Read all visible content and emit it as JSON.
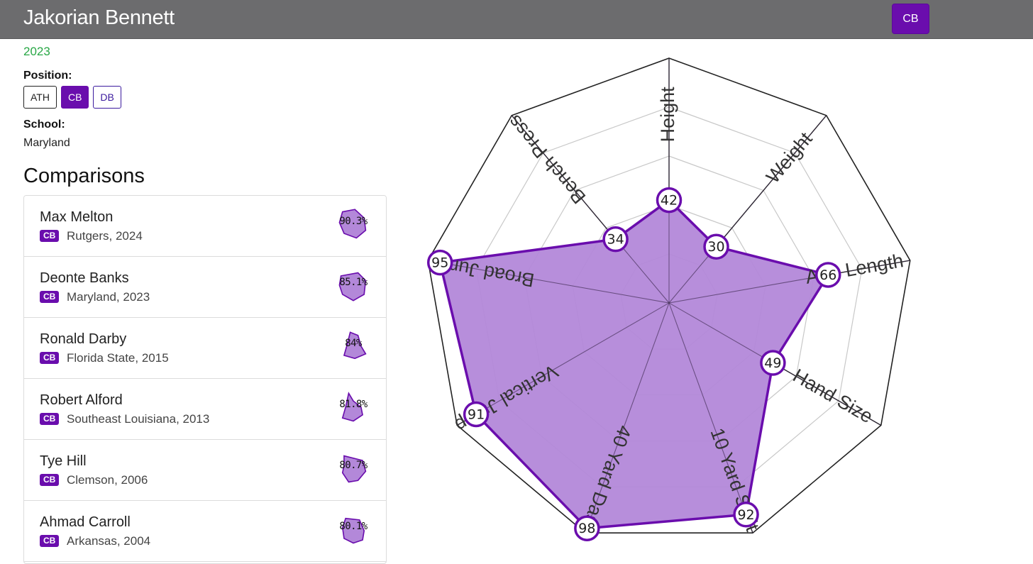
{
  "header": {
    "player_name": "Jakorian Bennett",
    "position_badge": "CB"
  },
  "profile": {
    "year": "2023",
    "position_label": "Position:",
    "positions": [
      {
        "label": "ATH",
        "state": "default"
      },
      {
        "label": "CB",
        "state": "active"
      },
      {
        "label": "DB",
        "state": "outline"
      }
    ],
    "school_label": "School:",
    "school": "Maryland"
  },
  "comparisons": {
    "title": "Comparisons",
    "items": [
      {
        "name": "Max Melton",
        "position": "CB",
        "meta": "Rutgers, 2024",
        "pct": "90.3%"
      },
      {
        "name": "Deonte Banks",
        "position": "CB",
        "meta": "Maryland, 2023",
        "pct": "85.1%"
      },
      {
        "name": "Ronald Darby",
        "position": "CB",
        "meta": "Florida State, 2015",
        "pct": "84%"
      },
      {
        "name": "Robert Alford",
        "position": "CB",
        "meta": "Southeast Louisiana, 2013",
        "pct": "81.8%"
      },
      {
        "name": "Tye Hill",
        "position": "CB",
        "meta": "Clemson, 2006",
        "pct": "80.7%"
      },
      {
        "name": "Ahmad Carroll",
        "position": "CB",
        "meta": "Arkansas, 2004",
        "pct": "80.1%"
      }
    ]
  },
  "radar": {
    "axes": [
      {
        "label": "Height",
        "value": 42
      },
      {
        "label": "Weight",
        "value": 30
      },
      {
        "label": "Arm Length",
        "value": 66
      },
      {
        "label": "Hand Size",
        "value": 49
      },
      {
        "label": "10 Yard Split",
        "value": 92
      },
      {
        "label": "40 Yard Dash",
        "value": 98
      },
      {
        "label": "Vertical Jump",
        "value": 91
      },
      {
        "label": "Broad Jump",
        "value": 95
      },
      {
        "label": "Bench Press",
        "value": 34
      }
    ],
    "max": 100,
    "fill_color": "#b388d9",
    "stroke_color": "#6a0dad"
  }
}
